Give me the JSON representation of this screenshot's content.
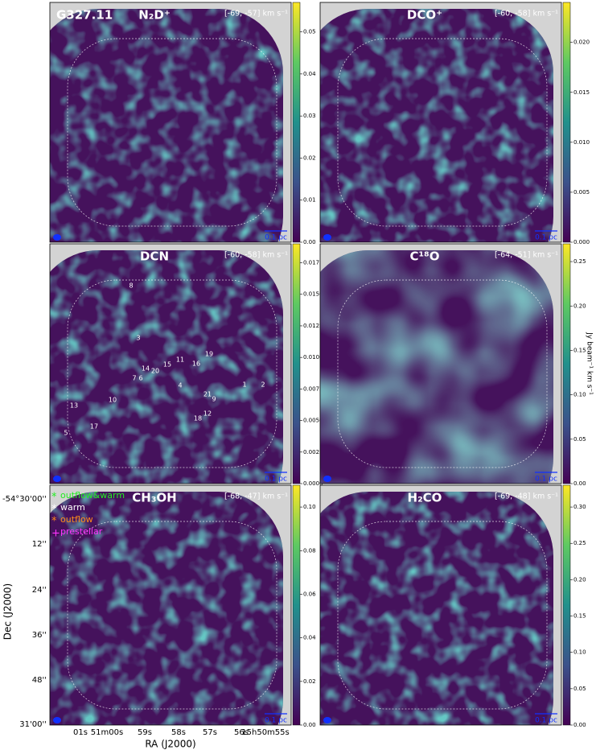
{
  "chart_data": [
    {
      "type": "map",
      "field": "G327.11",
      "title": "N₂D⁺",
      "velocity_range": "[-69, -57] km s⁻¹",
      "scale_bar": "0.1 pc",
      "clim": [
        0,
        0.057
      ],
      "cticks": [
        {
          "value": 0,
          "label": "0.00"
        },
        0.01,
        0.02,
        0.03,
        0.04,
        0.05
      ]
    },
    {
      "type": "map",
      "title": "DCO⁺",
      "velocity_range": "[-60, -58] km s⁻¹",
      "scale_bar": "0.1 pc",
      "clim": [
        0,
        0.024
      ],
      "cticks": [
        {
          "value": 0,
          "label": "0.000"
        },
        0.005,
        {
          "value": 0.01,
          "label": "0.010"
        },
        0.015,
        {
          "value": 0.02,
          "label": "0.020"
        }
      ]
    },
    {
      "type": "map",
      "title": "DCN",
      "velocity_range": "[-60, -58] km s⁻¹",
      "scale_bar": "0.1 pc",
      "clim": [
        0,
        0.019
      ],
      "cticks": [
        {
          "value": 0,
          "label": "0.0000"
        },
        0.0025,
        {
          "value": 0.005,
          "label": "0.0050"
        },
        0.0075,
        {
          "value": 0.01,
          "label": "0.0100"
        },
        0.0125,
        {
          "value": 0.015,
          "label": "0.0150"
        },
        0.0175
      ],
      "source_labels": [
        "8",
        "3",
        "19",
        "11",
        "15",
        "16",
        "14",
        "20",
        "7",
        "6",
        "4",
        "1",
        "2",
        "10",
        "21",
        "9",
        "13",
        "18",
        "12",
        "5",
        "17"
      ]
    },
    {
      "type": "map",
      "title": "C¹⁸O",
      "velocity_range": "[-64, -51] km s⁻¹",
      "scale_bar": "0.1 pc",
      "colorbar_label": "Jy beam⁻¹ km s⁻¹",
      "clim": [
        0,
        0.27
      ],
      "cticks": [
        {
          "value": 0,
          "label": "0.00"
        },
        0.05,
        {
          "value": 0.1,
          "label": "0.10"
        },
        0.15,
        {
          "value": 0.2,
          "label": "0.20"
        },
        0.25
      ]
    },
    {
      "type": "map",
      "title": "CH₃OH",
      "velocity_range": "[-68, -47] km s⁻¹",
      "scale_bar": "0.1 pc",
      "clim": [
        0,
        0.11
      ],
      "cticks": [
        {
          "value": 0,
          "label": "0.00"
        },
        0.02,
        0.04,
        0.06,
        0.08,
        {
          "value": 0.1,
          "label": "0.10"
        }
      ],
      "legend": [
        "outflow&warm",
        "warm",
        "outflow",
        "prestellar"
      ],
      "xlabel": "RA (J2000)",
      "ylabel": "Dec (J2000)",
      "x_tick_labels": [
        "01s",
        "51m00s",
        "59s",
        "58s",
        "57s",
        "56s",
        "15h50m55s"
      ],
      "y_tick_labels": [
        "-54°30'00''",
        "12''",
        "24''",
        "36''",
        "48''",
        "31'00''"
      ]
    },
    {
      "type": "map",
      "title": "H₂CO",
      "velocity_range": "[-69, -48] km s⁻¹",
      "scale_bar": "0.1 pc",
      "clim": [
        0,
        0.33
      ],
      "cticks": [
        {
          "value": 0,
          "label": "0.00"
        },
        0.05,
        {
          "value": 0.1,
          "label": "0.10"
        },
        0.15,
        {
          "value": 0.2,
          "label": "0.20"
        },
        0.25,
        {
          "value": 0.3,
          "label": "0.30"
        }
      ]
    }
  ]
}
